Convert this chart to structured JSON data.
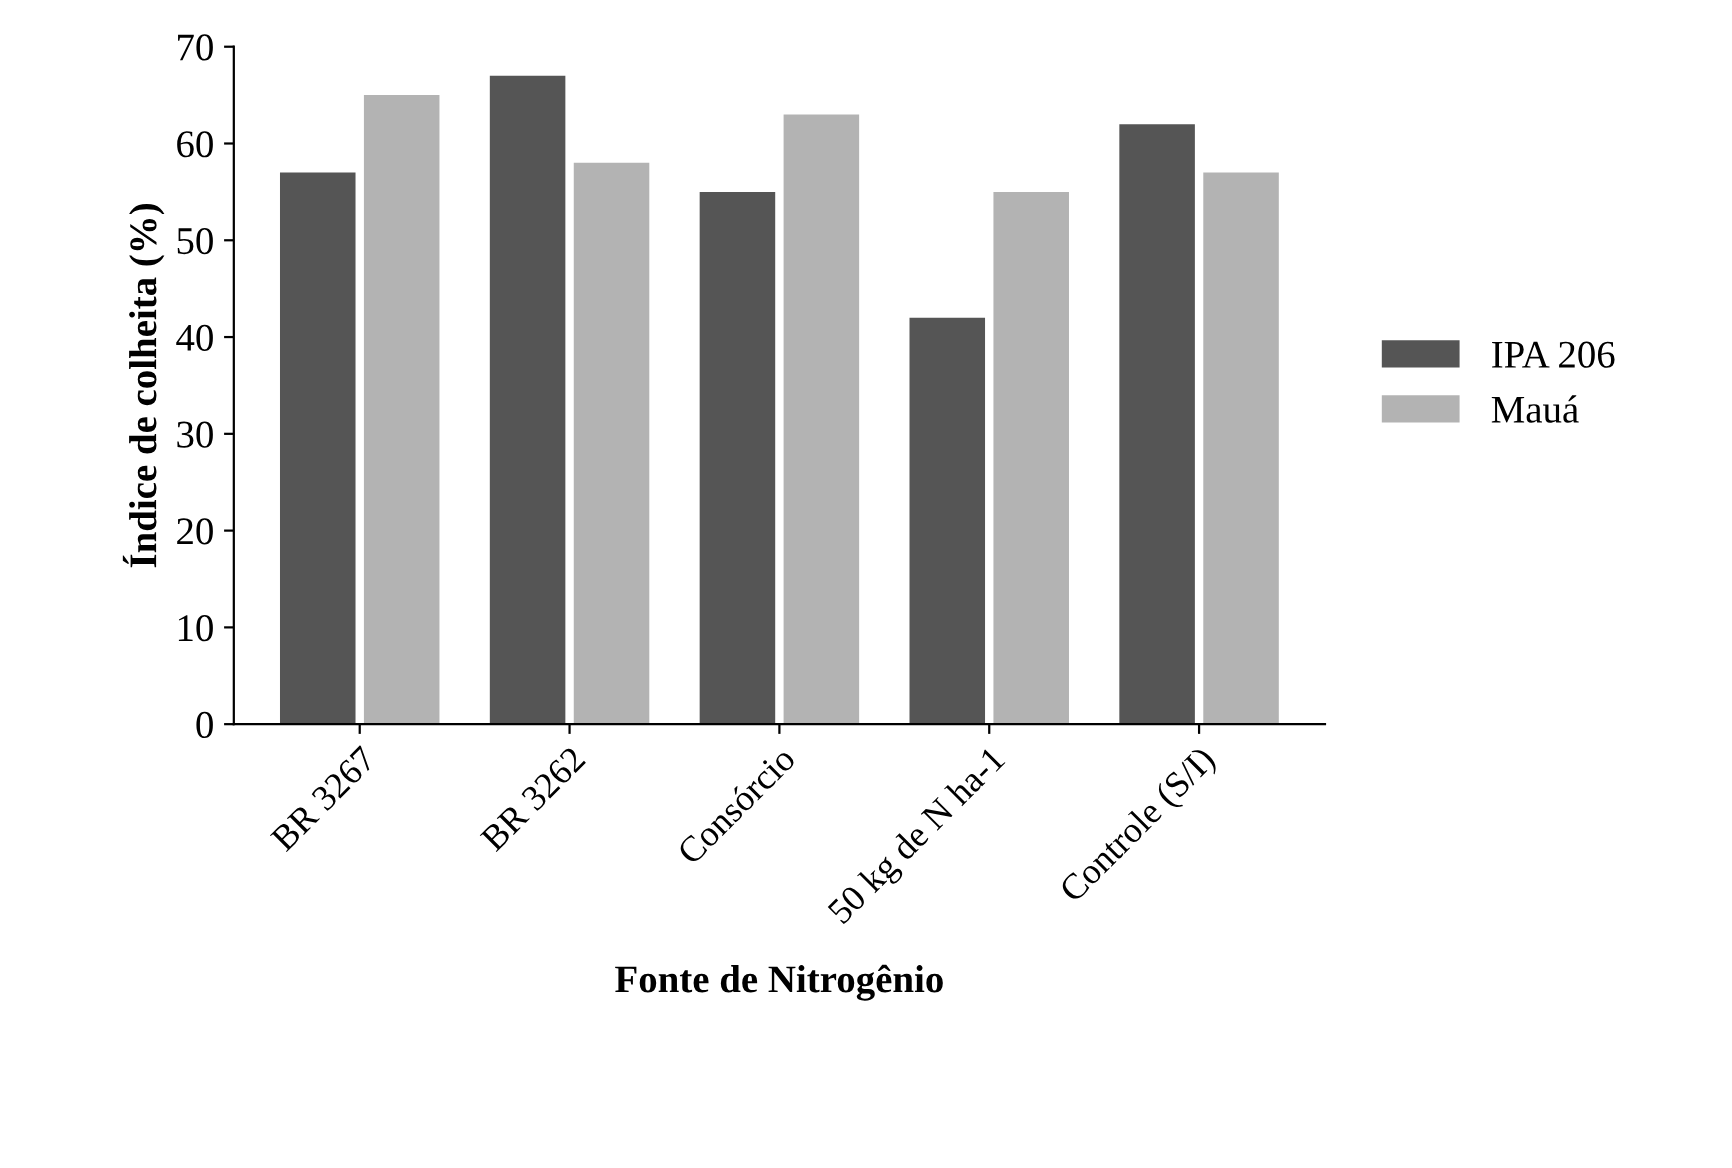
{
  "chart_data": {
    "type": "bar",
    "xlabel": "Fonte de Nitrogênio",
    "ylabel": "Índice de colheita (%)",
    "categories": [
      "BR 3267",
      "BR 3262",
      "Consórcio",
      "50 kg de N ha-1",
      "Controle (S/I)"
    ],
    "series": [
      {
        "name": "IPA 206",
        "color": "#555555",
        "values": [
          57,
          67,
          55,
          42,
          62
        ]
      },
      {
        "name": "Mauá",
        "color": "#b3b3b3",
        "values": [
          65,
          58,
          63,
          55,
          57
        ]
      }
    ],
    "ylim": [
      0,
      70
    ],
    "yticks": [
      0,
      10,
      20,
      30,
      40,
      50,
      60,
      70
    ],
    "grid": false,
    "legend": "right"
  }
}
